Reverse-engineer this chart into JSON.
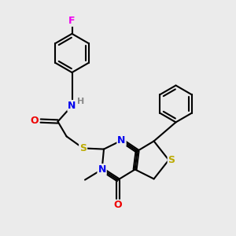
{
  "bg_color": "#ebebeb",
  "bond_color": "#000000",
  "bond_width": 1.5,
  "dbo": 0.07,
  "atom_colors": {
    "F": "#ee00ee",
    "N": "#0000ee",
    "O": "#ee0000",
    "S": "#bbaa00",
    "H": "#888888",
    "C": "#000000"
  },
  "font_size": 8.5
}
